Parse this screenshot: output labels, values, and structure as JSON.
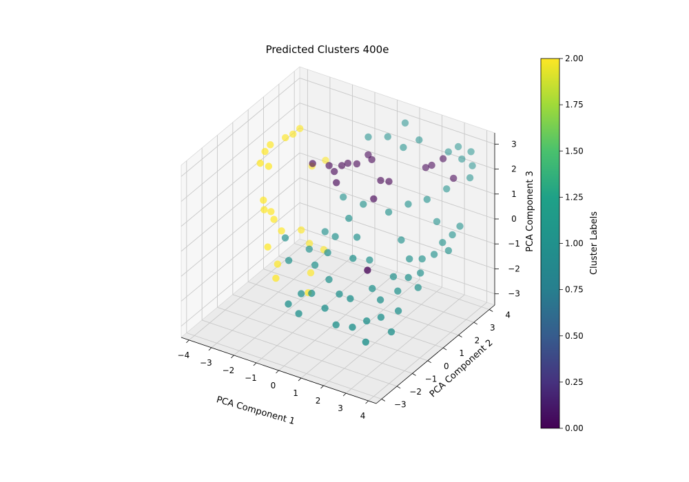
{
  "chart_data": {
    "type": "scatter",
    "projection": "3d",
    "title": "Predicted Clusters 400e",
    "xlabel": "PCA Component 1",
    "ylabel": "PCA Component 2",
    "zlabel": "PCA Component 3",
    "xlim": [
      -4,
      4
    ],
    "ylim": [
      -3,
      4
    ],
    "zlim": [
      -3,
      3
    ],
    "xticks": [
      "−4",
      "−3",
      "−2",
      "−1",
      "0",
      "1",
      "2",
      "3",
      "4"
    ],
    "yticks": [
      "−3",
      "−2",
      "−1",
      "0",
      "1",
      "2",
      "3",
      "4"
    ],
    "zticks": [
      "−3",
      "−2",
      "−1",
      "0",
      "1",
      "2",
      "3"
    ],
    "grid": true,
    "colormap": "viridis",
    "colorbar": {
      "label": "Cluster Labels",
      "range": [
        0,
        2
      ],
      "ticks": [
        "0.00",
        "0.25",
        "0.50",
        "0.75",
        "1.00",
        "1.25",
        "1.50",
        "1.75",
        "2.00"
      ]
    },
    "cluster_colors": {
      "0": "#440154",
      "1": "#21918c",
      "2": "#fde725"
    },
    "points": [
      {
        "x": -3.5,
        "y": 1.2,
        "z": 2.2,
        "label": 2
      },
      {
        "x": -3.6,
        "y": 1.0,
        "z": 2.0,
        "label": 2
      },
      {
        "x": -3.3,
        "y": 0.8,
        "z": 1.6,
        "label": 2
      },
      {
        "x": -3.1,
        "y": 1.6,
        "z": 2.4,
        "label": 2
      },
      {
        "x": -2.9,
        "y": 1.8,
        "z": 2.5,
        "label": 2
      },
      {
        "x": -2.8,
        "y": 2.1,
        "z": 2.6,
        "label": 2
      },
      {
        "x": -3.4,
        "y": 0.4,
        "z": 1.9,
        "label": 2
      },
      {
        "x": -3.6,
        "y": 0.9,
        "z": 0.1,
        "label": 2
      },
      {
        "x": -3.5,
        "y": 0.8,
        "z": -0.2,
        "label": 2
      },
      {
        "x": -3.4,
        "y": 1.1,
        "z": -0.4,
        "label": 2
      },
      {
        "x": -3.2,
        "y": 1.0,
        "z": -0.6,
        "label": 2
      },
      {
        "x": -3.0,
        "y": 1.2,
        "z": -1.1,
        "label": 2
      },
      {
        "x": -3.2,
        "y": 0.6,
        "z": -1.5,
        "label": 2
      },
      {
        "x": -2.6,
        "y": 1.9,
        "z": -1.3,
        "label": 2
      },
      {
        "x": -2.3,
        "y": 2.0,
        "z": -1.8,
        "label": 2
      },
      {
        "x": -2.9,
        "y": 0.8,
        "z": -2.2,
        "label": 2
      },
      {
        "x": -2.7,
        "y": 0.4,
        "z": -2.5,
        "label": 2
      },
      {
        "x": -1.9,
        "y": 1.5,
        "z": -2.6,
        "label": 2
      },
      {
        "x": -1.8,
        "y": 2.2,
        "z": -2.0,
        "label": 2
      },
      {
        "x": -1.6,
        "y": 0.9,
        "z": -3.0,
        "label": 2
      },
      {
        "x": -2.6,
        "y": 2.6,
        "z": 0.9,
        "label": 2
      },
      {
        "x": -2.2,
        "y": 2.9,
        "z": 1.1,
        "label": 2
      },
      {
        "x": -2.3,
        "y": 2.2,
        "z": 1.3,
        "label": 0
      },
      {
        "x": -1.7,
        "y": 2.4,
        "z": 1.3,
        "label": 0
      },
      {
        "x": -1.4,
        "y": 2.3,
        "z": 1.2,
        "label": 0
      },
      {
        "x": -1.2,
        "y": 2.5,
        "z": 1.4,
        "label": 0
      },
      {
        "x": -1.0,
        "y": 2.6,
        "z": 1.5,
        "label": 0
      },
      {
        "x": -1.1,
        "y": 2.0,
        "z": 1.0,
        "label": 0
      },
      {
        "x": -0.6,
        "y": 2.6,
        "z": 1.6,
        "label": 0
      },
      {
        "x": -0.3,
        "y": 2.9,
        "z": 1.9,
        "label": 0
      },
      {
        "x": 0.0,
        "y": 2.7,
        "z": 1.9,
        "label": 0
      },
      {
        "x": 0.6,
        "y": 2.4,
        "z": 1.4,
        "label": 0
      },
      {
        "x": 0.9,
        "y": 2.5,
        "z": 1.4,
        "label": 0
      },
      {
        "x": 0.7,
        "y": 1.8,
        "z": 1.0,
        "label": 0
      },
      {
        "x": 2.2,
        "y": 3.0,
        "z": 2.1,
        "label": 0
      },
      {
        "x": 2.4,
        "y": 3.1,
        "z": 2.2,
        "label": 0
      },
      {
        "x": 2.7,
        "y": 3.4,
        "z": 2.4,
        "label": 0
      },
      {
        "x": 3.3,
        "y": 3.2,
        "z": 1.9,
        "label": 0
      },
      {
        "x": 1.8,
        "y": -0.2,
        "z": -0.5,
        "label": 0
      },
      {
        "x": -0.5,
        "y": 3.2,
        "z": 2.4,
        "label": 1
      },
      {
        "x": 0.3,
        "y": 3.3,
        "z": 2.6,
        "label": 1
      },
      {
        "x": 1.2,
        "y": 3.0,
        "z": 2.6,
        "label": 1
      },
      {
        "x": 1.7,
        "y": 3.3,
        "z": 2.9,
        "label": 1
      },
      {
        "x": 0.8,
        "y": 3.7,
        "z": 3.1,
        "label": 1
      },
      {
        "x": 2.8,
        "y": 3.6,
        "z": 2.6,
        "label": 1
      },
      {
        "x": 3.1,
        "y": 3.8,
        "z": 2.8,
        "label": 1
      },
      {
        "x": 3.4,
        "y": 3.6,
        "z": 2.5,
        "label": 1
      },
      {
        "x": 3.6,
        "y": 3.9,
        "z": 2.7,
        "label": 1
      },
      {
        "x": 3.8,
        "y": 3.7,
        "z": 2.3,
        "label": 1
      },
      {
        "x": 3.9,
        "y": 3.4,
        "z": 2.0,
        "label": 1
      },
      {
        "x": 3.2,
        "y": 2.9,
        "z": 1.6,
        "label": 1
      },
      {
        "x": 2.6,
        "y": 2.5,
        "z": 1.2,
        "label": 1
      },
      {
        "x": 1.9,
        "y": 2.3,
        "z": 0.9,
        "label": 1
      },
      {
        "x": 4.0,
        "y": 2.6,
        "z": 0.5,
        "label": 1
      },
      {
        "x": 3.8,
        "y": 2.4,
        "z": 0.2,
        "label": 1
      },
      {
        "x": 3.5,
        "y": 2.2,
        "z": -0.1,
        "label": 1
      },
      {
        "x": 3.9,
        "y": 2.0,
        "z": -0.2,
        "label": 1
      },
      {
        "x": 3.4,
        "y": 1.8,
        "z": -0.4,
        "label": 1
      },
      {
        "x": 3.0,
        "y": 1.6,
        "z": -0.6,
        "label": 1
      },
      {
        "x": 2.5,
        "y": 1.5,
        "z": -0.7,
        "label": 1
      },
      {
        "x": 3.2,
        "y": 1.2,
        "z": -0.9,
        "label": 1
      },
      {
        "x": 2.8,
        "y": 1.0,
        "z": -1.1,
        "label": 1
      },
      {
        "x": 3.3,
        "y": 0.9,
        "z": -1.3,
        "label": 1
      },
      {
        "x": 2.2,
        "y": 0.9,
        "z": -1.2,
        "label": 1
      },
      {
        "x": 2.6,
        "y": 0.6,
        "z": -1.5,
        "label": 1
      },
      {
        "x": 1.6,
        "y": 0.4,
        "z": -1.6,
        "label": 1
      },
      {
        "x": 2.1,
        "y": 0.2,
        "z": -1.8,
        "label": 1
      },
      {
        "x": 2.9,
        "y": 0.2,
        "z": -2.0,
        "label": 1
      },
      {
        "x": 2.4,
        "y": -0.2,
        "z": -2.2,
        "label": 1
      },
      {
        "x": 1.9,
        "y": -0.4,
        "z": -2.4,
        "label": 1
      },
      {
        "x": 3.0,
        "y": -0.4,
        "z": -2.5,
        "label": 1
      },
      {
        "x": 1.4,
        "y": -0.6,
        "z": -2.7,
        "label": 1
      },
      {
        "x": 2.2,
        "y": -0.9,
        "z": -2.9,
        "label": 1
      },
      {
        "x": 1.1,
        "y": -0.3,
        "z": -1.8,
        "label": 1
      },
      {
        "x": 0.6,
        "y": 0.6,
        "z": -0.8,
        "label": 1
      },
      {
        "x": 0.3,
        "y": 1.3,
        "z": -0.4,
        "label": 1
      },
      {
        "x": -0.2,
        "y": 1.5,
        "z": 0.1,
        "label": 1
      },
      {
        "x": -0.6,
        "y": 1.2,
        "z": -0.6,
        "label": 1
      },
      {
        "x": -1.0,
        "y": 2.3,
        "z": 0.3,
        "label": 1
      },
      {
        "x": -0.8,
        "y": 1.0,
        "z": -1.2,
        "label": 1
      },
      {
        "x": -1.3,
        "y": 0.9,
        "z": -1.8,
        "label": 1
      },
      {
        "x": -0.4,
        "y": 0.5,
        "z": -1.9,
        "label": 1
      },
      {
        "x": 0.2,
        "y": 0.3,
        "z": -2.2,
        "label": 1
      },
      {
        "x": -0.9,
        "y": 0.1,
        "z": -2.4,
        "label": 1
      },
      {
        "x": -0.1,
        "y": -0.2,
        "z": -2.6,
        "label": 1
      },
      {
        "x": 0.6,
        "y": -0.5,
        "z": -2.9,
        "label": 1
      },
      {
        "x": -1.5,
        "y": 0.3,
        "z": -2.7,
        "label": 1
      },
      {
        "x": -1.8,
        "y": -0.1,
        "z": -3.0,
        "label": 1
      },
      {
        "x": -2.4,
        "y": 0.8,
        "z": -1.9,
        "label": 1
      },
      {
        "x": -2.9,
        "y": 1.3,
        "z": -1.4,
        "label": 1
      },
      {
        "x": -1.4,
        "y": 1.7,
        "z": -0.9,
        "label": 1
      },
      {
        "x": -1.2,
        "y": -0.3,
        "z": -3.1,
        "label": 1
      },
      {
        "x": 0.1,
        "y": 2.0,
        "z": 0.5,
        "label": 1
      },
      {
        "x": -1.9,
        "y": 1.4,
        "z": -1.6,
        "label": 1
      },
      {
        "x": 1.3,
        "y": 1.9,
        "z": 0.6,
        "label": 1
      },
      {
        "x": 2.9,
        "y": 2.7,
        "z": 0.3,
        "label": 1
      },
      {
        "x": 1.0,
        "y": 1.1,
        "z": -1.0,
        "label": 1
      },
      {
        "x": 2.0,
        "y": 1.7,
        "z": -0.2,
        "label": 1
      }
    ]
  }
}
